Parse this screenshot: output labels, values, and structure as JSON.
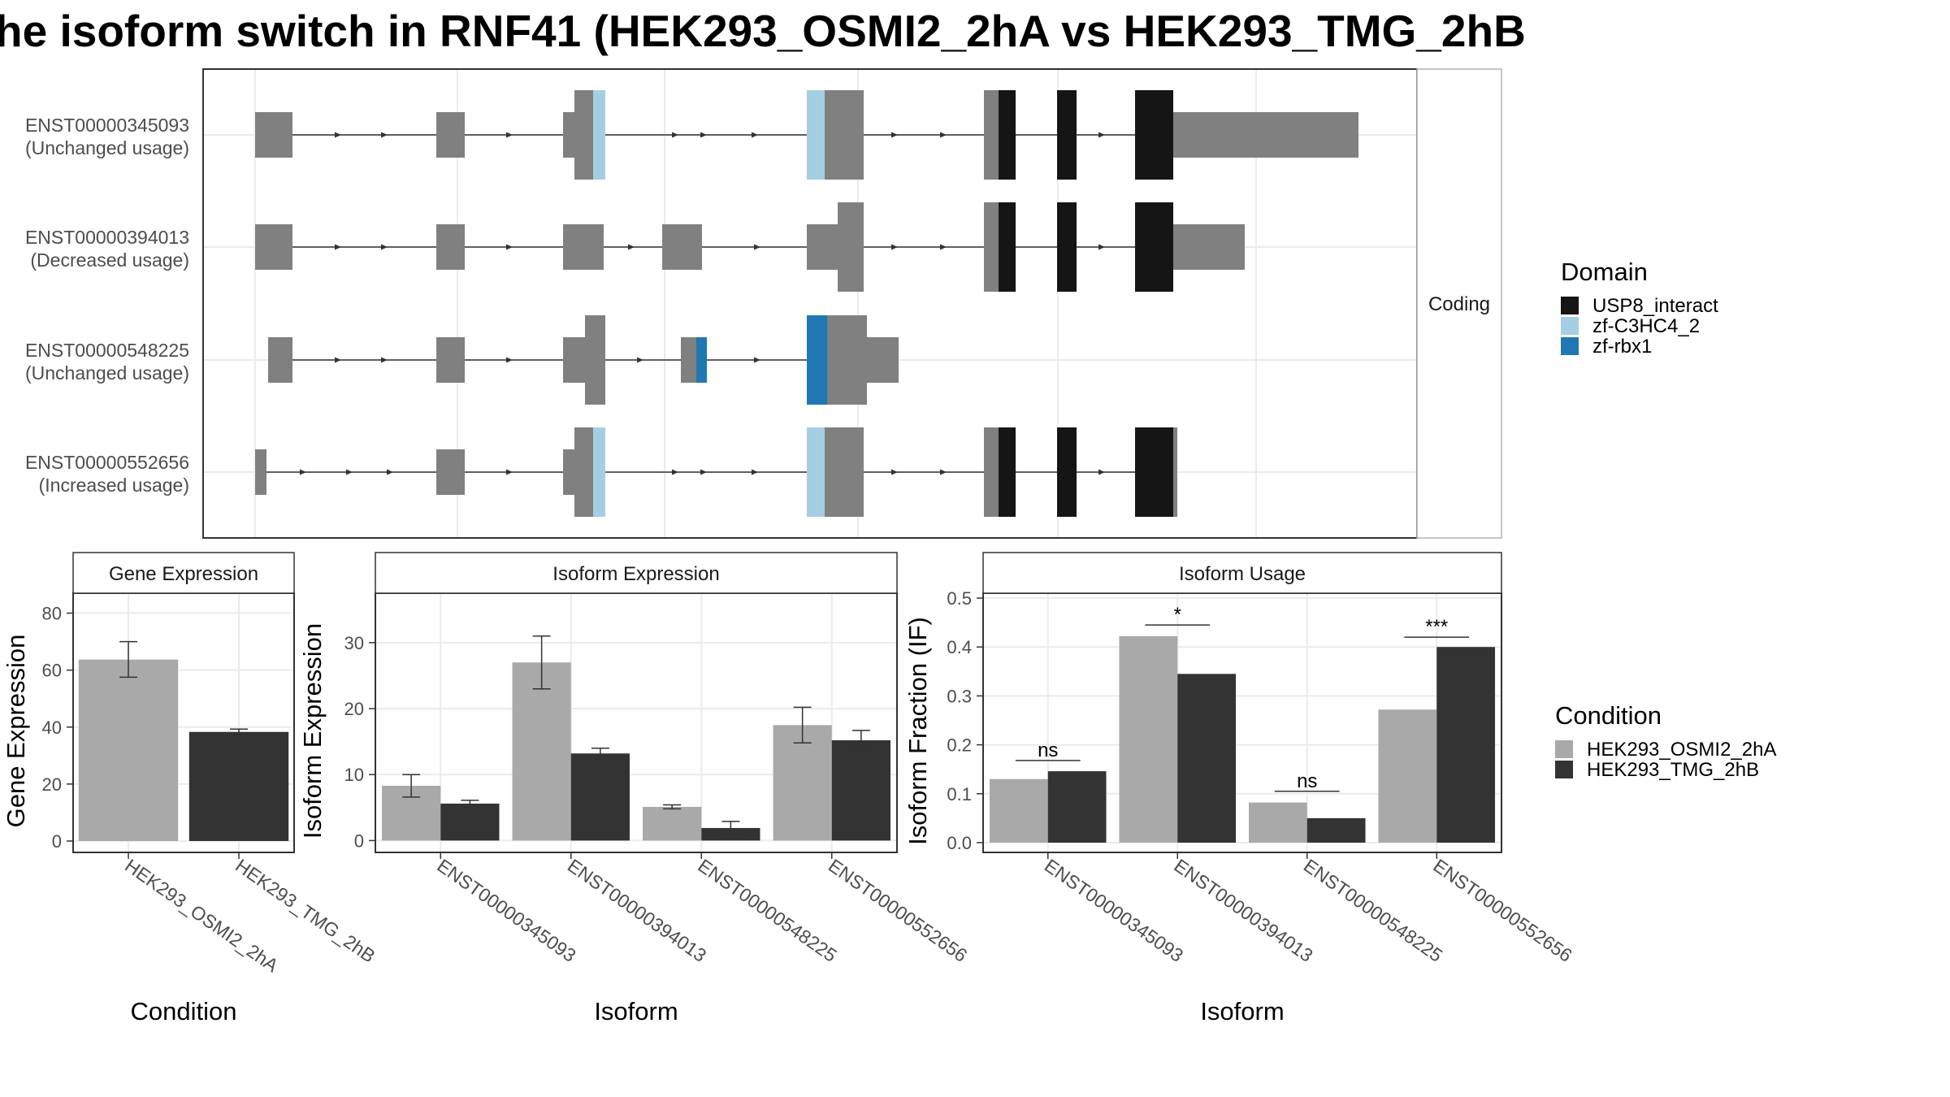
{
  "title": "he isoform switch in RNF41 (HEK293_OSMI2_2hA vs HEK293_TMG_2hB",
  "colors": {
    "exon": "#808080",
    "usp8": "#151515",
    "c3hc4": "#a6cee3",
    "rbx1": "#1f78b4",
    "condA": "#a9a9a9",
    "condB": "#333333",
    "grid": "#ebebeb",
    "panel_border": "#333333"
  },
  "facet_label": "Coding",
  "domain_legend": {
    "title": "Domain",
    "items": [
      {
        "label": "USP8_interact",
        "color": "#151515"
      },
      {
        "label": "zf-C3HC4_2",
        "color": "#a6cee3"
      },
      {
        "label": "zf-rbx1",
        "color": "#1f78b4"
      }
    ]
  },
  "condition_legend": {
    "title": "Condition",
    "items": [
      {
        "label": "HEK293_OSMI2_2hA",
        "color": "#a9a9a9"
      },
      {
        "label": "HEK293_TMG_2hB",
        "color": "#333333"
      }
    ]
  },
  "transcripts": [
    {
      "id": "ENST00000345093",
      "usage": "(Unchanged usage)"
    },
    {
      "id": "ENST00000394013",
      "usage": "(Decreased usage)"
    },
    {
      "id": "ENST00000548225",
      "usage": "(Unchanged usage)"
    },
    {
      "id": "ENST00000552656",
      "usage": "(Increased usage)"
    }
  ],
  "chart_data": [
    {
      "type": "bar",
      "title": "Gene Expression",
      "xlabel": "Condition",
      "ylabel": "Gene Expression",
      "categories": [
        "HEK293_OSMI2_2hA",
        "HEK293_TMG_2hB"
      ],
      "values": [
        63.7,
        38.3
      ],
      "errors": [
        [
          57.5,
          70.0
        ],
        [
          37.5,
          39.3
        ]
      ],
      "yticks": [
        0,
        20,
        40,
        60,
        80
      ],
      "ylim": [
        -4,
        87
      ]
    },
    {
      "type": "bar",
      "title": "Isoform Expression",
      "xlabel": "Isoform",
      "ylabel": "Isoform Expression",
      "categories": [
        "ENST00000345093",
        "ENST00000394013",
        "ENST00000548225",
        "ENST00000552656"
      ],
      "series": [
        {
          "name": "HEK293_OSMI2_2hA",
          "values": [
            8.3,
            27.0,
            5.1,
            17.5
          ],
          "errors": [
            [
              6.6,
              10.0
            ],
            [
              23.0,
              31.0
            ],
            [
              4.8,
              5.4
            ],
            [
              14.8,
              20.2
            ]
          ]
        },
        {
          "name": "HEK293_TMG_2hB",
          "values": [
            5.6,
            13.2,
            1.9,
            15.2
          ],
          "errors": [
            [
              5.1,
              6.1
            ],
            [
              12.4,
              14.0
            ],
            [
              0.9,
              2.9
            ],
            [
              13.7,
              16.7
            ]
          ]
        }
      ],
      "yticks": [
        0,
        10,
        20,
        30
      ],
      "ylim": [
        -1.8,
        37.5
      ]
    },
    {
      "type": "bar",
      "title": "Isoform Usage",
      "xlabel": "Isoform",
      "ylabel": "Isoform Fraction (IF)",
      "categories": [
        "ENST00000345093",
        "ENST00000394013",
        "ENST00000548225",
        "ENST00000552656"
      ],
      "series": [
        {
          "name": "HEK293_OSMI2_2hA",
          "values": [
            0.13,
            0.422,
            0.082,
            0.272
          ]
        },
        {
          "name": "HEK293_TMG_2hB",
          "values": [
            0.146,
            0.345,
            0.05,
            0.4
          ]
        }
      ],
      "significance": [
        {
          "category": 0,
          "label": "ns",
          "y": 0.168
        },
        {
          "category": 1,
          "label": "*",
          "y": 0.445
        },
        {
          "category": 2,
          "label": "ns",
          "y": 0.105
        },
        {
          "category": 3,
          "label": "***",
          "y": 0.42
        }
      ],
      "yticks": [
        0.0,
        0.1,
        0.2,
        0.3,
        0.4,
        0.5
      ],
      "ylim": [
        -0.02,
        0.51
      ]
    }
  ]
}
